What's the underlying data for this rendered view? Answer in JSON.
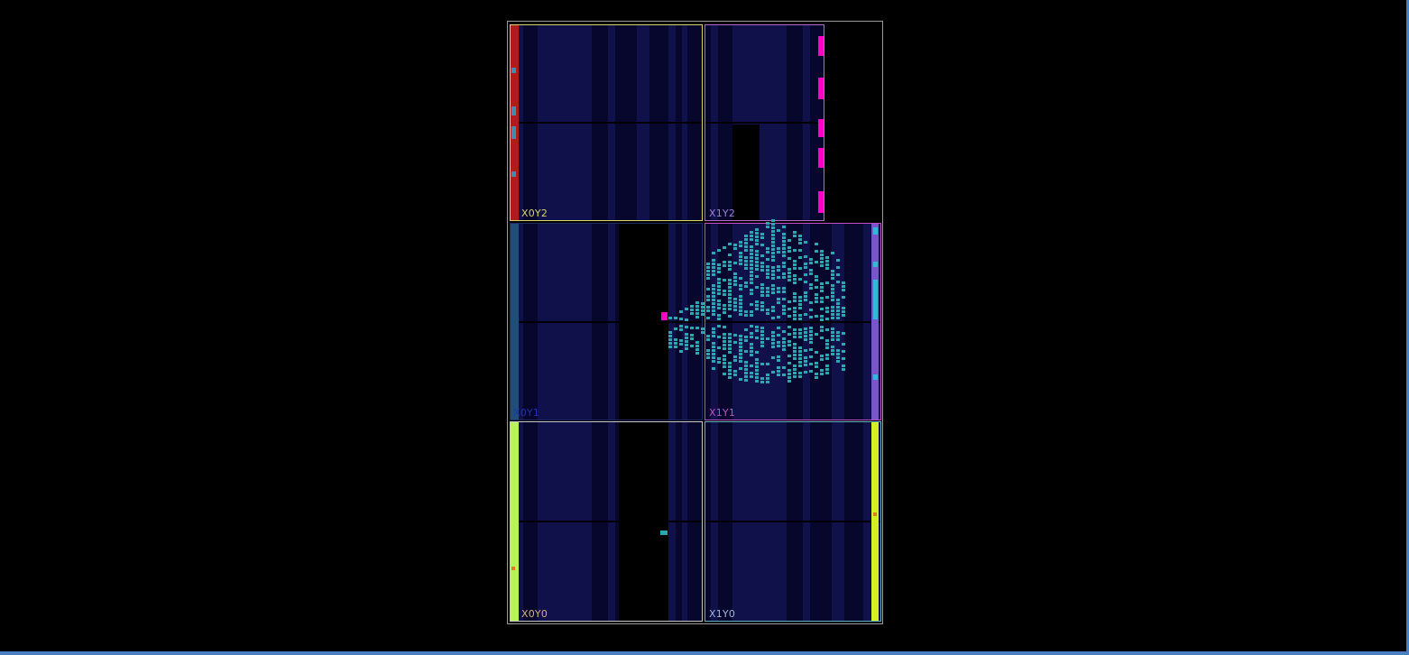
{
  "regions": [
    {
      "id": "X0Y2",
      "label": "X0Y2",
      "border": "#d8d36a",
      "labelColor": "#d8d36a"
    },
    {
      "id": "X1Y2",
      "label": "X1Y2",
      "border": "#b56cc9",
      "labelColor": "#9d7fd8"
    },
    {
      "id": "X0Y1",
      "label": "X0Y1",
      "border": "#1c2b66",
      "labelColor": "#2233aa"
    },
    {
      "id": "X1Y1",
      "label": "X1Y1",
      "border": "#c24fc7",
      "labelColor": "#c24fc7"
    },
    {
      "id": "X0Y0",
      "label": "X0Y0",
      "border": "#c9c9c9",
      "labelColor": "#d6b07a"
    },
    {
      "id": "X1Y0",
      "label": "X1Y0",
      "border": "#5fb5c4",
      "labelColor": "#9fb8d8"
    }
  ],
  "colors": {
    "fabric": "#07072e",
    "column": "#10104a",
    "cell": "#2aa7b0",
    "highlight": "#ff00c8",
    "io_red": "#b01c1c",
    "io_teal": "#1f4f78",
    "io_purple": "#7a55c8",
    "io_green": "#b8f25a",
    "io_green2": "#d4f022",
    "outline": "#9a9a9a",
    "window_border": "#4a7fc4"
  }
}
